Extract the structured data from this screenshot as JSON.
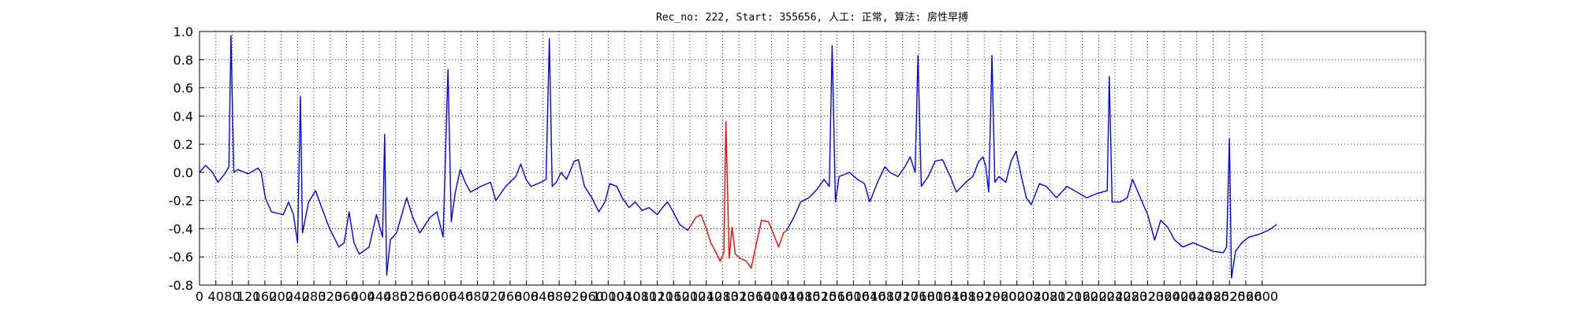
{
  "chart_data": {
    "type": "line",
    "title": "Rec_no: 222, Start: 355656, 人工: 正常, 算法: 房性早搏",
    "xlim": [
      0,
      3000
    ],
    "ylim": [
      -0.8,
      1.0
    ],
    "xticks": [
      0,
      40,
      80,
      120,
      160,
      200,
      240,
      280,
      320,
      360,
      400,
      440,
      480,
      520,
      560,
      600,
      640,
      680,
      720,
      760,
      800,
      840,
      880,
      920,
      960,
      1000,
      1040,
      1080,
      1120,
      1160,
      1200,
      1240,
      1280,
      1320,
      1360,
      1400,
      1440,
      1480,
      1520,
      1560,
      1600,
      1640,
      1680,
      1720,
      1760,
      1800,
      1840,
      1880,
      1920,
      1960,
      2000,
      2040,
      2080,
      2120,
      2160,
      2200,
      2240,
      2280,
      2320,
      2360,
      2400,
      2440,
      2480,
      2520,
      2560,
      2600
    ],
    "yticks": [
      {
        "value": 1,
        "label": "1.0"
      },
      0.8,
      0.6,
      0.4,
      0.2,
      {
        "value": 0,
        "label": "0.0"
      },
      -0.2,
      -0.4,
      -0.6,
      -0.8
    ],
    "grid": true,
    "series": [
      {
        "color": "#0000ff",
        "x": [
          0,
          15,
          32,
          45,
          62,
          72,
          77,
          84,
          94,
          119,
          143,
          151,
          161,
          176,
          205,
          218,
          230,
          240,
          247,
          252,
          267,
          284,
          299,
          317,
          341,
          354,
          366,
          378,
          391,
          415,
          433,
          448,
          453,
          458,
          467,
          482,
          497,
          507,
          522,
          539,
          564,
          581,
          596,
          608,
          616,
          626,
          638,
          650,
          663,
          688,
          712,
          725,
          749,
          774,
          786,
          799,
          811,
          836,
          848,
          856,
          863,
          873,
          885,
          898,
          917,
          927,
          942,
          960,
          977,
          992,
          1004,
          1021,
          1034,
          1051,
          1066,
          1083,
          1100,
          1120,
          1133,
          1145,
          1157,
          1175,
          1194,
          1200,
          1320,
          1437,
          1454,
          1471,
          1491,
          1511,
          1528,
          1541,
          1548,
          1556,
          1565,
          1590,
          1610,
          1627,
          1640,
          1659,
          1677,
          1689,
          1709,
          1726,
          1739,
          1751,
          1758,
          1766,
          1783,
          1800,
          1818,
          1837,
          1852,
          1875,
          1892,
          1907,
          1917,
          1924,
          1931,
          1939,
          1946,
          1956,
          1973,
          1986,
          1998,
          2011,
          2023,
          2035,
          2055,
          2072,
          2097,
          2122,
          2147,
          2171,
          2196,
          2221,
          2226,
          2233,
          2253,
          2270,
          2283,
          2302,
          2320,
          2337,
          2352,
          2369,
          2386,
          2406,
          2431,
          2456,
          2480,
          2505,
          2513,
          2520,
          2525,
          2535,
          2550,
          2567,
          2592,
          2616,
          2636
        ],
        "values": [
          0.0,
          0.05,
          0.0,
          -0.07,
          -0.01,
          0.04,
          0.97,
          0.0,
          0.02,
          -0.01,
          0.03,
          0.0,
          -0.18,
          -0.28,
          -0.3,
          -0.21,
          -0.3,
          -0.5,
          0.54,
          -0.43,
          -0.21,
          -0.13,
          -0.25,
          -0.39,
          -0.53,
          -0.5,
          -0.28,
          -0.5,
          -0.58,
          -0.53,
          -0.3,
          -0.46,
          0.27,
          -0.73,
          -0.48,
          -0.43,
          -0.28,
          -0.18,
          -0.32,
          -0.43,
          -0.32,
          -0.28,
          -0.46,
          0.73,
          -0.35,
          -0.14,
          0.02,
          -0.07,
          -0.14,
          -0.1,
          -0.07,
          -0.2,
          -0.1,
          -0.03,
          0.06,
          -0.05,
          -0.1,
          -0.07,
          -0.05,
          0.95,
          -0.1,
          -0.07,
          0.0,
          -0.05,
          0.08,
          0.09,
          -0.1,
          -0.18,
          -0.28,
          -0.21,
          -0.08,
          -0.1,
          -0.18,
          -0.25,
          -0.21,
          -0.27,
          -0.25,
          -0.3,
          -0.25,
          -0.21,
          -0.27,
          -0.37,
          -0.41,
          -0.39,
          null,
          -0.41,
          -0.32,
          -0.21,
          -0.18,
          -0.12,
          -0.05,
          -0.1,
          0.9,
          -0.21,
          -0.03,
          0.0,
          -0.05,
          -0.08,
          -0.21,
          -0.07,
          0.04,
          0.0,
          -0.03,
          0.04,
          0.11,
          0.0,
          0.83,
          -0.1,
          -0.03,
          0.08,
          0.09,
          -0.03,
          -0.14,
          -0.07,
          -0.03,
          0.08,
          0.11,
          0.04,
          -0.14,
          0.83,
          -0.07,
          -0.03,
          -0.07,
          0.08,
          0.15,
          -0.03,
          -0.18,
          -0.23,
          -0.08,
          -0.1,
          -0.18,
          -0.1,
          -0.14,
          -0.18,
          -0.15,
          -0.13,
          0.68,
          -0.21,
          -0.21,
          -0.18,
          -0.05,
          -0.18,
          -0.3,
          -0.48,
          -0.34,
          -0.39,
          -0.48,
          -0.53,
          -0.5,
          -0.53,
          -0.56,
          -0.57,
          -0.53,
          0.24,
          -0.75,
          -0.56,
          -0.5,
          -0.46,
          -0.44,
          -0.41,
          -0.37
        ]
      },
      {
        "color": "#ff0000",
        "x": [
          1200,
          1214,
          1227,
          1239,
          1251,
          1264,
          1274,
          1283,
          1288,
          1296,
          1303,
          1311,
          1323,
          1338,
          1350,
          1363,
          1375,
          1392,
          1405,
          1417,
          1429,
          1437
        ],
        "values": [
          -0.39,
          -0.32,
          -0.3,
          -0.39,
          -0.5,
          -0.57,
          -0.63,
          -0.57,
          0.36,
          -0.61,
          -0.39,
          -0.58,
          -0.61,
          -0.63,
          -0.68,
          -0.5,
          -0.34,
          -0.35,
          -0.44,
          -0.53,
          -0.43,
          -0.41
        ]
      }
    ]
  }
}
